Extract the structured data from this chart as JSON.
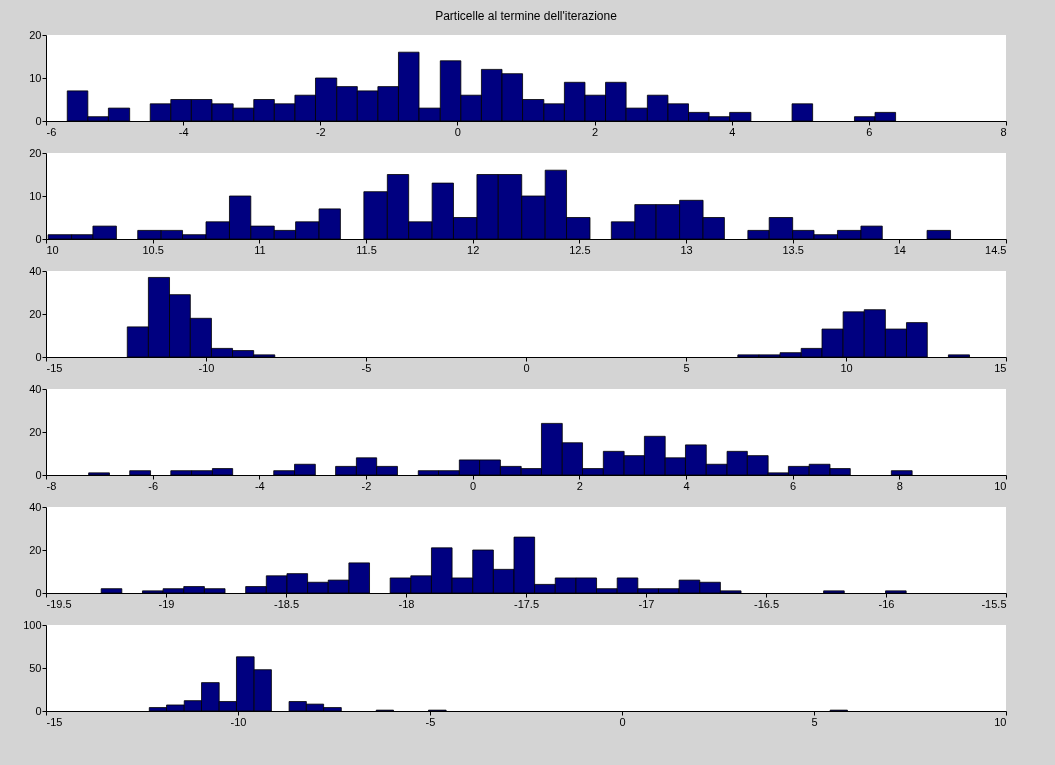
{
  "chart_data": [
    {
      "type": "histogram",
      "title": "Particelle al termine dell'iterazione",
      "color": "#000080",
      "bins": [
        -5.69,
        -5.39,
        -5.09,
        -4.78,
        -4.48,
        -4.18,
        -3.88,
        -3.58,
        -3.27,
        -2.97,
        -2.67,
        -2.37,
        -2.07,
        -1.76,
        -1.46,
        -1.16,
        -0.86,
        -0.56,
        -0.25,
        0.05,
        0.35,
        0.65,
        0.95,
        1.26,
        1.56,
        1.86,
        2.16,
        2.46,
        2.77,
        3.07,
        3.37,
        3.67,
        3.97,
        4.28,
        4.88,
        5.18,
        5.79,
        6.09,
        6.39
      ],
      "values": [
        7,
        1,
        3,
        0,
        4,
        5,
        5,
        4,
        3,
        5,
        4,
        6,
        10,
        8,
        7,
        8,
        16,
        3,
        14,
        6,
        12,
        11,
        5,
        4,
        9,
        6,
        9,
        3,
        6,
        4,
        2,
        1,
        2,
        0,
        4,
        0,
        1,
        2
      ],
      "xlim": [
        -6,
        8
      ],
      "xticks": [
        -6,
        -4,
        -2,
        0,
        2,
        4,
        6,
        8
      ],
      "ylim": [
        0,
        20
      ],
      "yticks": [
        0,
        10,
        20
      ]
    },
    {
      "type": "histogram",
      "color": "#000080",
      "bins": [
        10.01,
        10.12,
        10.22,
        10.33,
        10.43,
        10.54,
        10.64,
        10.75,
        10.86,
        10.96,
        11.07,
        11.17,
        11.28,
        11.38,
        11.49,
        11.6,
        11.7,
        11.81,
        11.91,
        12.02,
        12.12,
        12.23,
        12.34,
        12.44,
        12.55,
        12.65,
        12.76,
        12.86,
        12.97,
        13.08,
        13.18,
        13.29,
        13.39,
        13.5,
        13.6,
        13.71,
        13.82,
        13.92,
        14.13,
        14.24
      ],
      "values": [
        1,
        1,
        3,
        0,
        2,
        2,
        1,
        4,
        10,
        3,
        2,
        4,
        7,
        0,
        11,
        15,
        4,
        13,
        5,
        15,
        15,
        10,
        16,
        5,
        0,
        4,
        8,
        8,
        9,
        5,
        0,
        2,
        5,
        2,
        1,
        2,
        3,
        0,
        2
      ],
      "xlim": [
        10,
        14.5
      ],
      "xticks": [
        10,
        10.5,
        11,
        11.5,
        12,
        12.5,
        13,
        13.5,
        14,
        14.5
      ],
      "ylim": [
        0,
        20
      ],
      "yticks": [
        0,
        10,
        20
      ]
    },
    {
      "type": "histogram",
      "color": "#000080",
      "bins": [
        -12.46,
        -11.8,
        -11.14,
        -10.49,
        -9.83,
        -9.17,
        -8.51,
        -7.85,
        6.62,
        7.28,
        7.94,
        8.6,
        9.25,
        9.91,
        10.57,
        11.23,
        11.89,
        12.54,
        13.2,
        13.86
      ],
      "values": [
        14,
        37,
        29,
        18,
        4,
        3,
        1,
        0,
        1,
        1,
        2,
        4,
        13,
        21,
        22,
        13,
        16,
        0,
        1
      ],
      "xlim": [
        -15,
        15
      ],
      "xticks": [
        -15,
        -10,
        -5,
        0,
        5,
        10,
        15
      ],
      "ylim": [
        0,
        40
      ],
      "yticks": [
        0,
        20,
        40
      ]
    },
    {
      "type": "histogram",
      "color": "#000080",
      "bins": [
        -7.2,
        -6.81,
        -6.43,
        -6.04,
        -5.66,
        -5.27,
        -4.88,
        -4.5,
        -3.73,
        -3.34,
        -2.95,
        -2.57,
        -2.18,
        -1.8,
        -1.41,
        -1.02,
        -0.64,
        -0.25,
        0.13,
        0.52,
        0.91,
        1.29,
        1.68,
        2.06,
        2.45,
        2.84,
        3.22,
        3.61,
        3.99,
        4.38,
        4.77,
        5.15,
        5.54,
        5.92,
        6.31,
        6.7,
        7.08,
        7.85,
        8.24
      ],
      "values": [
        1,
        0,
        2,
        0,
        2,
        2,
        3,
        0,
        2,
        5,
        0,
        4,
        8,
        4,
        0,
        2,
        2,
        7,
        7,
        4,
        3,
        24,
        15,
        3,
        11,
        9,
        18,
        8,
        14,
        5,
        11,
        9,
        1,
        4,
        5,
        3,
        0,
        2
      ],
      "xlim": [
        -8,
        10
      ],
      "xticks": [
        -8,
        -6,
        -4,
        -2,
        0,
        2,
        4,
        6,
        8,
        10
      ],
      "ylim": [
        0,
        40
      ],
      "yticks": [
        0,
        20,
        40
      ]
    },
    {
      "type": "histogram",
      "color": "#000080",
      "bins": [
        -19.27,
        -19.184,
        -19.098,
        -19.012,
        -18.926,
        -18.84,
        -18.754,
        -18.668,
        -18.582,
        -18.496,
        -18.41,
        -18.324,
        -18.238,
        -18.152,
        -18.066,
        -17.98,
        -17.894,
        -17.808,
        -17.722,
        -17.636,
        -17.55,
        -17.464,
        -17.378,
        -17.292,
        -17.206,
        -17.12,
        -17.034,
        -16.948,
        -16.862,
        -16.776,
        -16.69,
        -16.604,
        -16.26,
        -16.174,
        -16.002,
        -15.916
      ],
      "values": [
        2,
        0,
        1,
        2,
        3,
        2,
        0,
        3,
        8,
        9,
        5,
        6,
        14,
        0,
        7,
        8,
        21,
        7,
        20,
        11,
        26,
        4,
        7,
        7,
        2,
        7,
        2,
        2,
        6,
        5,
        1,
        0,
        1,
        0,
        1
      ],
      "xlim": [
        -19.5,
        -15.5
      ],
      "xticks": [
        -19.5,
        -19,
        -18.5,
        -18,
        -17.5,
        -17,
        -16.5,
        -16,
        -15.5
      ],
      "ylim": [
        0,
        40
      ],
      "yticks": [
        0,
        20,
        40
      ]
    },
    {
      "type": "histogram",
      "color": "#000080",
      "bins": [
        -12.31,
        -11.86,
        -11.4,
        -10.95,
        -10.49,
        -10.04,
        -9.58,
        -9.13,
        -8.67,
        -8.22,
        -7.77,
        -7.31,
        -6.4,
        -5.95,
        -5.04,
        -4.58,
        5.42,
        5.87
      ],
      "values": [
        4,
        7,
        12,
        33,
        11,
        63,
        48,
        0,
        11,
        8,
        4,
        0,
        1,
        0,
        1,
        0,
        1
      ],
      "xlim": [
        -15,
        10
      ],
      "xticks": [
        -15,
        -10,
        -5,
        0,
        5,
        10
      ],
      "ylim": [
        0,
        100
      ],
      "yticks": [
        0,
        50,
        100
      ]
    }
  ]
}
